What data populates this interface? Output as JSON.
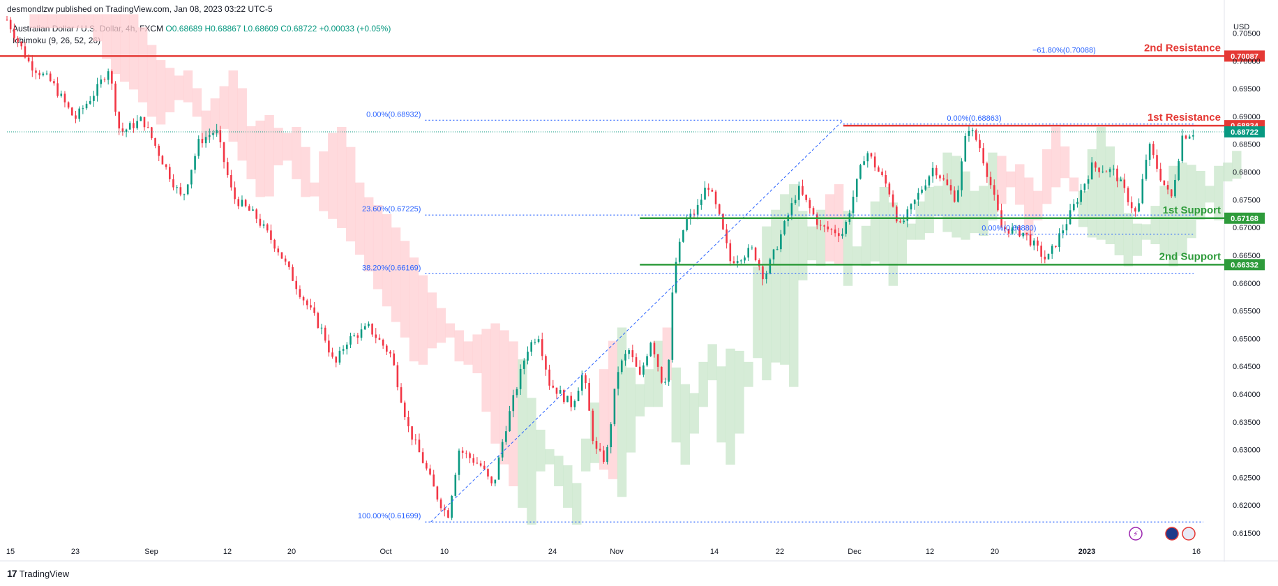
{
  "header": {
    "published": "desmondlzw published on TradingView.com, Jan 08, 2023 03:22 UTC-5",
    "symbol": "Australian Dollar / U.S. Dollar, 4h, FXCM",
    "ohlc": "O0.68689 H0.68867 L0.68609 C0.68722 +0.00033 (+0.05%)",
    "indicator": "Ichimoku (9, 26, 52, 26)",
    "currency": "USD"
  },
  "footer": {
    "brand": "TradingView",
    "logo": "17"
  },
  "colors": {
    "up": "#089981",
    "down": "#f23645",
    "resistance": "#e53935",
    "support": "#2e9b3b",
    "fib": "#2962ff",
    "cloud_bull": "#c8e6c9",
    "cloud_bear": "#ffcdd2",
    "price_label": "#089981"
  },
  "chart_data": {
    "type": "candlestick",
    "title": "Australian Dollar / U.S. Dollar, 4h, FXCM",
    "y_axis": {
      "ticks": [
        0.705,
        0.7,
        0.695,
        0.69,
        0.685,
        0.68,
        0.675,
        0.67,
        0.665,
        0.66,
        0.655,
        0.65,
        0.645,
        0.64,
        0.635,
        0.63,
        0.625,
        0.62,
        0.615
      ],
      "tick_labels": [
        "0.70500",
        "0.70000",
        "0.69500",
        "0.69000",
        "0.68500",
        "0.68000",
        "0.67500",
        "0.67000",
        "0.66500",
        "0.66000",
        "0.65500",
        "0.65000",
        "0.64500",
        "0.64000",
        "0.63500",
        "0.63000",
        "0.62500",
        "0.62000",
        "0.61500"
      ],
      "range": [
        0.6135,
        0.7082
      ]
    },
    "x_axis": {
      "tick_labels": [
        "15",
        "23",
        "Sep",
        "12",
        "20",
        "Oct",
        "10",
        "24",
        "Nov",
        "14",
        "22",
        "Dec",
        "12",
        "20",
        "2023",
        "16"
      ]
    },
    "horizontal_levels": [
      {
        "label": "2nd Resistance",
        "value": 0.70087,
        "value_label": "0.70087",
        "color": "resistance"
      },
      {
        "label": "1st Resistance",
        "value": 0.68834,
        "value_label": "0.68834",
        "color": "resistance"
      },
      {
        "label": "1st Support",
        "value": 0.67168,
        "value_label": "0.67168",
        "color": "support"
      },
      {
        "label": "2nd Support",
        "value": 0.66332,
        "value_label": "0.66332",
        "color": "support"
      }
    ],
    "last_price": {
      "value": 0.68722,
      "label": "0.68722"
    },
    "fibonacci": [
      {
        "label": "0.00%(0.68932)",
        "value": 0.68932
      },
      {
        "label": "23.60%(0.67225)",
        "value": 0.67225
      },
      {
        "label": "38.20%(0.66169)",
        "value": 0.66169
      },
      {
        "label": "100.00%(0.61699)",
        "value": 0.61699
      },
      {
        "label": "0.00%(0.68863)",
        "value": 0.68863
      },
      {
        "label": "0.00%(0.66880)",
        "value": 0.6688
      },
      {
        "label": "−61.80%(0.70088)",
        "value": 0.70088
      }
    ],
    "price_path": [
      [
        0,
        0.7074
      ],
      [
        0.02,
        0.6995
      ],
      [
        0.04,
        0.696
      ],
      [
        0.06,
        0.6895
      ],
      [
        0.08,
        0.695
      ],
      [
        0.09,
        0.6988
      ],
      [
        0.1,
        0.687
      ],
      [
        0.12,
        0.6895
      ],
      [
        0.14,
        0.681
      ],
      [
        0.155,
        0.675
      ],
      [
        0.17,
        0.6855
      ],
      [
        0.185,
        0.6875
      ],
      [
        0.2,
        0.6755
      ],
      [
        0.22,
        0.672
      ],
      [
        0.24,
        0.666
      ],
      [
        0.26,
        0.658
      ],
      [
        0.28,
        0.651
      ],
      [
        0.29,
        0.645
      ],
      [
        0.3,
        0.6495
      ],
      [
        0.32,
        0.652
      ],
      [
        0.33,
        0.6495
      ],
      [
        0.34,
        0.647
      ],
      [
        0.355,
        0.634
      ],
      [
        0.37,
        0.627
      ],
      [
        0.38,
        0.6218
      ],
      [
        0.39,
        0.618
      ],
      [
        0.4,
        0.63
      ],
      [
        0.42,
        0.627
      ],
      [
        0.43,
        0.623
      ],
      [
        0.44,
        0.633
      ],
      [
        0.46,
        0.648
      ],
      [
        0.47,
        0.651
      ],
      [
        0.48,
        0.642
      ],
      [
        0.49,
        0.64
      ],
      [
        0.5,
        0.638
      ],
      [
        0.51,
        0.644
      ],
      [
        0.52,
        0.63
      ],
      [
        0.53,
        0.628
      ],
      [
        0.54,
        0.644
      ],
      [
        0.55,
        0.648
      ],
      [
        0.56,
        0.643
      ],
      [
        0.57,
        0.65
      ],
      [
        0.58,
        0.642
      ],
      [
        0.585,
        0.644
      ],
      [
        0.59,
        0.662
      ],
      [
        0.6,
        0.671
      ],
      [
        0.61,
        0.673
      ],
      [
        0.62,
        0.678
      ],
      [
        0.63,
        0.672
      ],
      [
        0.64,
        0.664
      ],
      [
        0.66,
        0.666
      ],
      [
        0.67,
        0.661
      ],
      [
        0.68,
        0.666
      ],
      [
        0.7,
        0.677
      ],
      [
        0.72,
        0.67
      ],
      [
        0.74,
        0.669
      ],
      [
        0.76,
        0.684
      ],
      [
        0.78,
        0.677
      ],
      [
        0.79,
        0.67
      ],
      [
        0.8,
        0.6735
      ],
      [
        0.82,
        0.681
      ],
      [
        0.84,
        0.675
      ],
      [
        0.85,
        0.6885
      ],
      [
        0.86,
        0.685
      ],
      [
        0.87,
        0.678
      ],
      [
        0.88,
        0.67
      ],
      [
        0.9,
        0.669
      ],
      [
        0.92,
        0.664
      ],
      [
        0.94,
        0.672
      ],
      [
        0.96,
        0.681
      ],
      [
        0.98,
        0.68
      ],
      [
        1.0,
        0.672
      ],
      [
        1.01,
        0.685
      ],
      [
        1.02,
        0.6795
      ],
      [
        1.03,
        0.675
      ],
      [
        1.04,
        0.6865
      ],
      [
        1.05,
        0.6872
      ]
    ],
    "grid": false,
    "legend": "none"
  }
}
